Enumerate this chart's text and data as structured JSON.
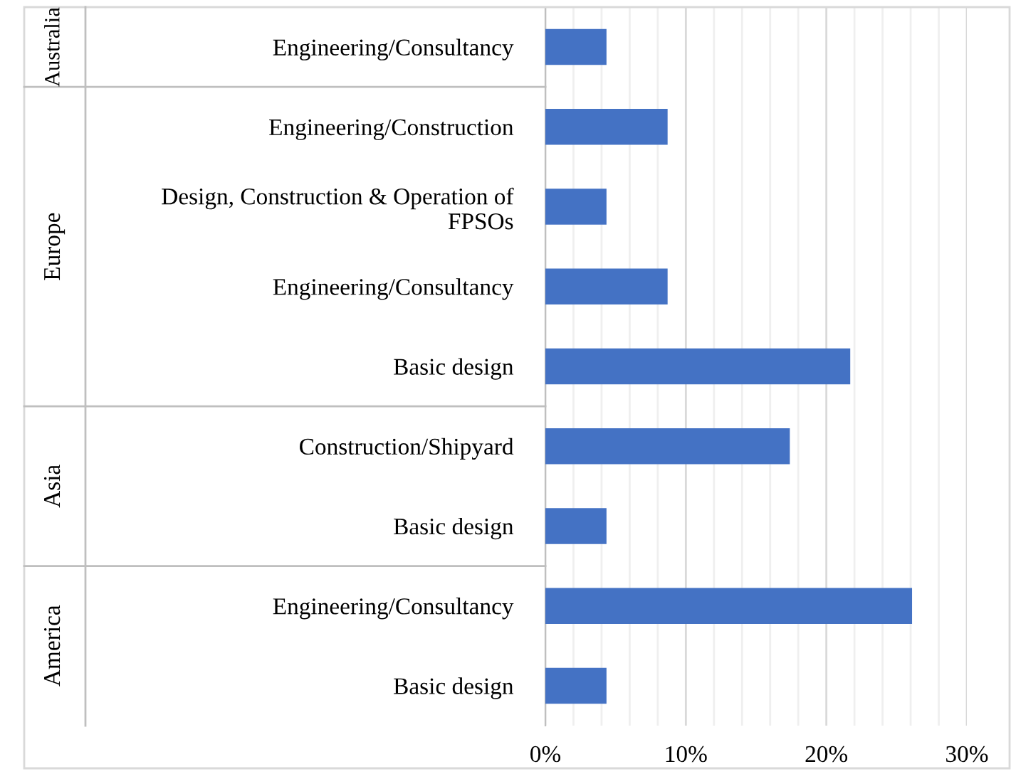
{
  "chart_data": {
    "type": "bar",
    "orientation": "horizontal",
    "categories": [
      "Engineering/Consultancy",
      "Engineering/Construction",
      "Design, Construction & Operation of FPSOs",
      "Engineering/Consultancy",
      "Basic design",
      "Construction/Shipyard",
      "Basic design",
      "Engineering/Consultancy",
      "Basic design"
    ],
    "values": [
      4.35,
      8.7,
      4.35,
      8.7,
      21.7,
      17.4,
      4.35,
      26.1,
      4.35
    ],
    "color": "#4472c4",
    "xlim": [
      0,
      30
    ],
    "xticks": [
      {
        "value": 0,
        "label": "0%"
      },
      {
        "value": 2,
        "label": null
      },
      {
        "value": 4,
        "label": null
      },
      {
        "value": 6,
        "label": null
      },
      {
        "value": 8,
        "label": null
      },
      {
        "value": 10,
        "label": "10%"
      },
      {
        "value": 12,
        "label": null
      },
      {
        "value": 14,
        "label": null
      },
      {
        "value": 16,
        "label": null
      },
      {
        "value": 18,
        "label": null
      },
      {
        "value": 20,
        "label": "20%"
      },
      {
        "value": 22,
        "label": null
      },
      {
        "value": 24,
        "label": null
      },
      {
        "value": 26,
        "label": null
      },
      {
        "value": 28,
        "label": null
      },
      {
        "value": 30,
        "label": "30%"
      }
    ],
    "grid": "x",
    "annotations": [
      "Australia",
      "Europe",
      "Asia",
      "America"
    ]
  }
}
